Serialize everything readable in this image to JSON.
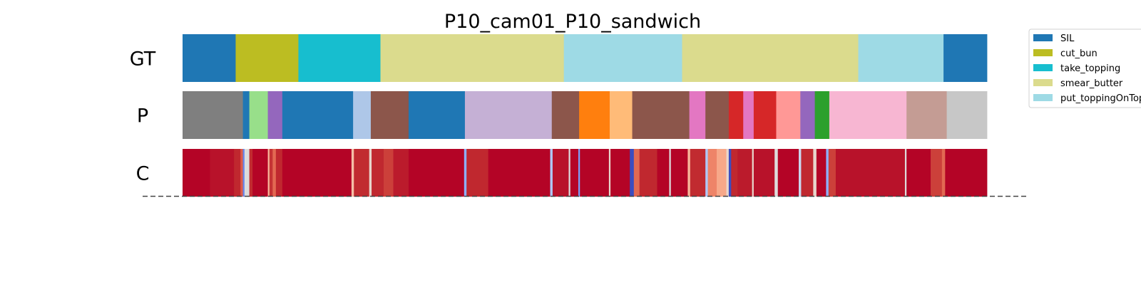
{
  "chart_data": {
    "type": "segmentation",
    "title": "P10_cam01_P10_sandwich",
    "x_range": [
      0,
      1
    ],
    "rows": [
      {
        "label": "GT",
        "segments": [
          {
            "start": 0.0,
            "end": 0.066,
            "color": "#1f77b4"
          },
          {
            "start": 0.066,
            "end": 0.144,
            "color": "#bcbd22"
          },
          {
            "start": 0.144,
            "end": 0.246,
            "color": "#17becf"
          },
          {
            "start": 0.246,
            "end": 0.474,
            "color": "#dbdb8d"
          },
          {
            "start": 0.474,
            "end": 0.621,
            "color": "#9edae5"
          },
          {
            "start": 0.621,
            "end": 0.84,
            "color": "#dbdb8d"
          },
          {
            "start": 0.84,
            "end": 0.946,
            "color": "#9edae5"
          },
          {
            "start": 0.946,
            "end": 1.0,
            "color": "#1f77b4"
          }
        ]
      },
      {
        "label": "P",
        "segments": [
          {
            "start": 0.0,
            "end": 0.075,
            "color": "#7f7f7f"
          },
          {
            "start": 0.075,
            "end": 0.083,
            "color": "#1f77b4"
          },
          {
            "start": 0.083,
            "end": 0.106,
            "color": "#98df8a"
          },
          {
            "start": 0.106,
            "end": 0.124,
            "color": "#9467bd"
          },
          {
            "start": 0.124,
            "end": 0.212,
            "color": "#1f77b4"
          },
          {
            "start": 0.212,
            "end": 0.234,
            "color": "#aec7e8"
          },
          {
            "start": 0.234,
            "end": 0.281,
            "color": "#8c564b"
          },
          {
            "start": 0.281,
            "end": 0.351,
            "color": "#1f77b4"
          },
          {
            "start": 0.351,
            "end": 0.459,
            "color": "#c5b0d5"
          },
          {
            "start": 0.459,
            "end": 0.493,
            "color": "#8c564b"
          },
          {
            "start": 0.493,
            "end": 0.531,
            "color": "#ff7f0e"
          },
          {
            "start": 0.531,
            "end": 0.559,
            "color": "#ffbb78"
          },
          {
            "start": 0.559,
            "end": 0.63,
            "color": "#8c564b"
          },
          {
            "start": 0.63,
            "end": 0.65,
            "color": "#e377c2"
          },
          {
            "start": 0.65,
            "end": 0.679,
            "color": "#8c564b"
          },
          {
            "start": 0.679,
            "end": 0.697,
            "color": "#d62728"
          },
          {
            "start": 0.697,
            "end": 0.71,
            "color": "#e377c2"
          },
          {
            "start": 0.71,
            "end": 0.738,
            "color": "#d62728"
          },
          {
            "start": 0.738,
            "end": 0.768,
            "color": "#ff9896"
          },
          {
            "start": 0.768,
            "end": 0.786,
            "color": "#9467bd"
          },
          {
            "start": 0.786,
            "end": 0.804,
            "color": "#2ca02c"
          },
          {
            "start": 0.804,
            "end": 0.9,
            "color": "#f7b6d2"
          },
          {
            "start": 0.9,
            "end": 0.95,
            "color": "#c49c94"
          },
          {
            "start": 0.95,
            "end": 1.0,
            "color": "#c7c7c7"
          }
        ]
      },
      {
        "label": "C",
        "base_color": "#b40426",
        "segments": [
          {
            "start": 0.0,
            "end": 0.034,
            "color": "#b40426"
          },
          {
            "start": 0.034,
            "end": 0.064,
            "color": "#b8122a"
          },
          {
            "start": 0.064,
            "end": 0.072,
            "color": "#c0282f"
          },
          {
            "start": 0.072,
            "end": 0.075,
            "color": "#dc5d4a"
          },
          {
            "start": 0.075,
            "end": 0.077,
            "color": "#6788ee"
          },
          {
            "start": 0.077,
            "end": 0.083,
            "color": "#dddcdc"
          },
          {
            "start": 0.083,
            "end": 0.087,
            "color": "#c12b30"
          },
          {
            "start": 0.087,
            "end": 0.106,
            "color": "#b40426"
          },
          {
            "start": 0.106,
            "end": 0.108,
            "color": "#f7b79b"
          },
          {
            "start": 0.108,
            "end": 0.112,
            "color": "#c53334"
          },
          {
            "start": 0.112,
            "end": 0.116,
            "color": "#e26952"
          },
          {
            "start": 0.116,
            "end": 0.124,
            "color": "#c0282f"
          },
          {
            "start": 0.124,
            "end": 0.21,
            "color": "#b40426"
          },
          {
            "start": 0.21,
            "end": 0.213,
            "color": "#f5c0a7"
          },
          {
            "start": 0.213,
            "end": 0.232,
            "color": "#c12b30"
          },
          {
            "start": 0.232,
            "end": 0.235,
            "color": "#e8d6cc"
          },
          {
            "start": 0.235,
            "end": 0.25,
            "color": "#c0282f"
          },
          {
            "start": 0.25,
            "end": 0.262,
            "color": "#cc403a"
          },
          {
            "start": 0.262,
            "end": 0.281,
            "color": "#bb1b2c"
          },
          {
            "start": 0.281,
            "end": 0.35,
            "color": "#b40426"
          },
          {
            "start": 0.35,
            "end": 0.353,
            "color": "#8db0fe"
          },
          {
            "start": 0.353,
            "end": 0.38,
            "color": "#c0282f"
          },
          {
            "start": 0.38,
            "end": 0.457,
            "color": "#b40426"
          },
          {
            "start": 0.457,
            "end": 0.46,
            "color": "#aec9fc"
          },
          {
            "start": 0.46,
            "end": 0.48,
            "color": "#b8122a"
          },
          {
            "start": 0.48,
            "end": 0.482,
            "color": "#dddcdc"
          },
          {
            "start": 0.482,
            "end": 0.492,
            "color": "#b40426"
          },
          {
            "start": 0.492,
            "end": 0.494,
            "color": "#7b9ff9"
          },
          {
            "start": 0.494,
            "end": 0.53,
            "color": "#b40426"
          },
          {
            "start": 0.53,
            "end": 0.532,
            "color": "#e8d6cc"
          },
          {
            "start": 0.532,
            "end": 0.556,
            "color": "#b40426"
          },
          {
            "start": 0.556,
            "end": 0.561,
            "color": "#3b4cc0"
          },
          {
            "start": 0.561,
            "end": 0.568,
            "color": "#e26952"
          },
          {
            "start": 0.568,
            "end": 0.59,
            "color": "#c0282f"
          },
          {
            "start": 0.59,
            "end": 0.605,
            "color": "#b40426"
          },
          {
            "start": 0.605,
            "end": 0.607,
            "color": "#dddcdc"
          },
          {
            "start": 0.607,
            "end": 0.628,
            "color": "#b40426"
          },
          {
            "start": 0.628,
            "end": 0.631,
            "color": "#f7b79b"
          },
          {
            "start": 0.631,
            "end": 0.65,
            "color": "#c12b30"
          },
          {
            "start": 0.65,
            "end": 0.653,
            "color": "#aec9fc"
          },
          {
            "start": 0.653,
            "end": 0.664,
            "color": "#ee8468"
          },
          {
            "start": 0.664,
            "end": 0.676,
            "color": "#f7a889"
          },
          {
            "start": 0.676,
            "end": 0.679,
            "color": "#e8d6cc"
          },
          {
            "start": 0.679,
            "end": 0.682,
            "color": "#3b4cc0"
          },
          {
            "start": 0.682,
            "end": 0.69,
            "color": "#c0282f"
          },
          {
            "start": 0.69,
            "end": 0.708,
            "color": "#bb1b2c"
          },
          {
            "start": 0.708,
            "end": 0.71,
            "color": "#e8d6cc"
          },
          {
            "start": 0.71,
            "end": 0.736,
            "color": "#b8122a"
          },
          {
            "start": 0.736,
            "end": 0.74,
            "color": "#dddcdc"
          },
          {
            "start": 0.74,
            "end": 0.766,
            "color": "#b40426"
          },
          {
            "start": 0.766,
            "end": 0.769,
            "color": "#cad8ef"
          },
          {
            "start": 0.769,
            "end": 0.784,
            "color": "#c0282f"
          },
          {
            "start": 0.784,
            "end": 0.788,
            "color": "#e8d6cc"
          },
          {
            "start": 0.788,
            "end": 0.8,
            "color": "#b40426"
          },
          {
            "start": 0.8,
            "end": 0.803,
            "color": "#8db0fe"
          },
          {
            "start": 0.803,
            "end": 0.812,
            "color": "#cc403a"
          },
          {
            "start": 0.812,
            "end": 0.898,
            "color": "#b8122a"
          },
          {
            "start": 0.898,
            "end": 0.9,
            "color": "#dddcdc"
          },
          {
            "start": 0.9,
            "end": 0.93,
            "color": "#b40426"
          },
          {
            "start": 0.93,
            "end": 0.944,
            "color": "#cc403a"
          },
          {
            "start": 0.944,
            "end": 0.948,
            "color": "#e26952"
          },
          {
            "start": 0.948,
            "end": 1.0,
            "color": "#b40426"
          }
        ]
      }
    ],
    "legend": {
      "placement": "top-right",
      "entries": [
        {
          "label": "SIL",
          "color": "#1f77b4"
        },
        {
          "label": "cut_bun",
          "color": "#bcbd22"
        },
        {
          "label": "take_topping",
          "color": "#17becf"
        },
        {
          "label": "smear_butter",
          "color": "#dbdb8d"
        },
        {
          "label": "put_toppingOnTop",
          "color": "#9edae5"
        }
      ]
    }
  }
}
